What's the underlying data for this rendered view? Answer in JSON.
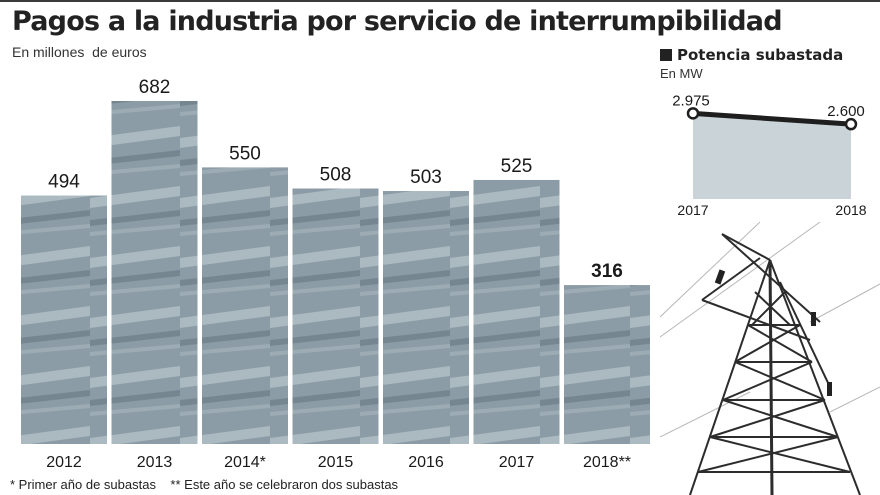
{
  "header": {
    "title": "Pagos a la industria por servicio de interrumpibilidad",
    "subtitle": "En millones  de euros"
  },
  "footnote": "* Primer año de subastas    ** Este año se celebraron dos subastas",
  "side": {
    "title": "Potencia subastada",
    "subtitle": "En MW",
    "legend_icon": "square-icon"
  },
  "colors": {
    "bar_fill": "#8b9ca6",
    "bar_fill_dark": "#6f818c",
    "area_fill": "#c9d3d8",
    "line": "#1e1e1e"
  },
  "chart_data": [
    {
      "type": "bar",
      "title": "Pagos a la industria por servicio de interrumpibilidad",
      "subtitle": "En millones  de euros",
      "categories": [
        "2012",
        "2013",
        "2014*",
        "2015",
        "2016",
        "2017",
        "2018**"
      ],
      "values": [
        494,
        682,
        550,
        508,
        503,
        525,
        316
      ],
      "value_labels": [
        "494",
        "682",
        "550",
        "508",
        "503",
        "525",
        "316"
      ],
      "highlighted": [
        false,
        false,
        false,
        false,
        false,
        false,
        true
      ],
      "xlabel": "",
      "ylabel": "",
      "ylim": [
        0,
        700
      ],
      "grid": false,
      "legend": "none"
    },
    {
      "type": "area",
      "title": "Potencia subastada",
      "subtitle": "En MW",
      "x": [
        "2017",
        "2018"
      ],
      "values": [
        2975,
        2600
      ],
      "value_labels": [
        "2.975",
        "2.600"
      ],
      "ylim": [
        0,
        3300
      ],
      "grid": false,
      "legend": "none"
    }
  ]
}
